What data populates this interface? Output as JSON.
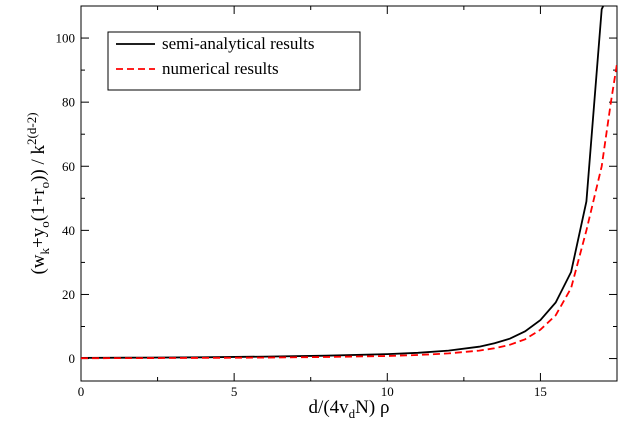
{
  "chart_data": {
    "type": "line",
    "xlabel": {
      "main": "d/(4v",
      "sub": "d",
      "rest": "N) ρ"
    },
    "ylabel": {
      "parts": [
        {
          "t": "(w",
          "s": "base"
        },
        {
          "t": "k",
          "s": "sub"
        },
        {
          "t": "+y",
          "s": "base"
        },
        {
          "t": "o",
          "s": "sub"
        },
        {
          "t": "(1+r",
          "s": "base"
        },
        {
          "t": "o",
          "s": "sub"
        },
        {
          "t": ")) / k",
          "s": "base"
        },
        {
          "t": "2(d-2)",
          "s": "sup"
        }
      ]
    },
    "xlim": [
      0,
      17.5
    ],
    "ylim": [
      -7,
      110
    ],
    "x_ticks": [
      0,
      5,
      10,
      15
    ],
    "y_ticks": [
      0,
      20,
      40,
      60,
      80,
      100
    ],
    "x_tick_labels": [
      "0",
      "5",
      "10",
      "15"
    ],
    "y_tick_labels": [
      "0",
      "20",
      "40",
      "60",
      "80",
      "100"
    ],
    "legend_position": "top-left",
    "series": [
      {
        "name": "semi-analytical results",
        "color": "#000000",
        "dash": "solid",
        "x": [
          0,
          2,
          4,
          6,
          8,
          10,
          11,
          12,
          13,
          13.5,
          14,
          14.5,
          15,
          15.5,
          16,
          16.5,
          17,
          17.3,
          17.5
        ],
        "y": [
          0.2,
          0.3,
          0.4,
          0.6,
          0.9,
          1.4,
          1.8,
          2.5,
          3.7,
          4.8,
          6.2,
          8.5,
          12,
          17.5,
          27,
          49,
          109,
          115,
          120
        ]
      },
      {
        "name": "numerical results",
        "color": "#ff0000",
        "dash": "dashed",
        "x": [
          0,
          2,
          4,
          6,
          8,
          10,
          11,
          12,
          13,
          13.5,
          14,
          14.5,
          15,
          15.5,
          16,
          16.5,
          17,
          17.3,
          17.5
        ],
        "y": [
          0.1,
          0.15,
          0.2,
          0.3,
          0.5,
          0.8,
          1.1,
          1.6,
          2.5,
          3.2,
          4.3,
          6,
          9,
          13.5,
          22,
          40,
          60,
          80,
          92
        ]
      }
    ]
  }
}
